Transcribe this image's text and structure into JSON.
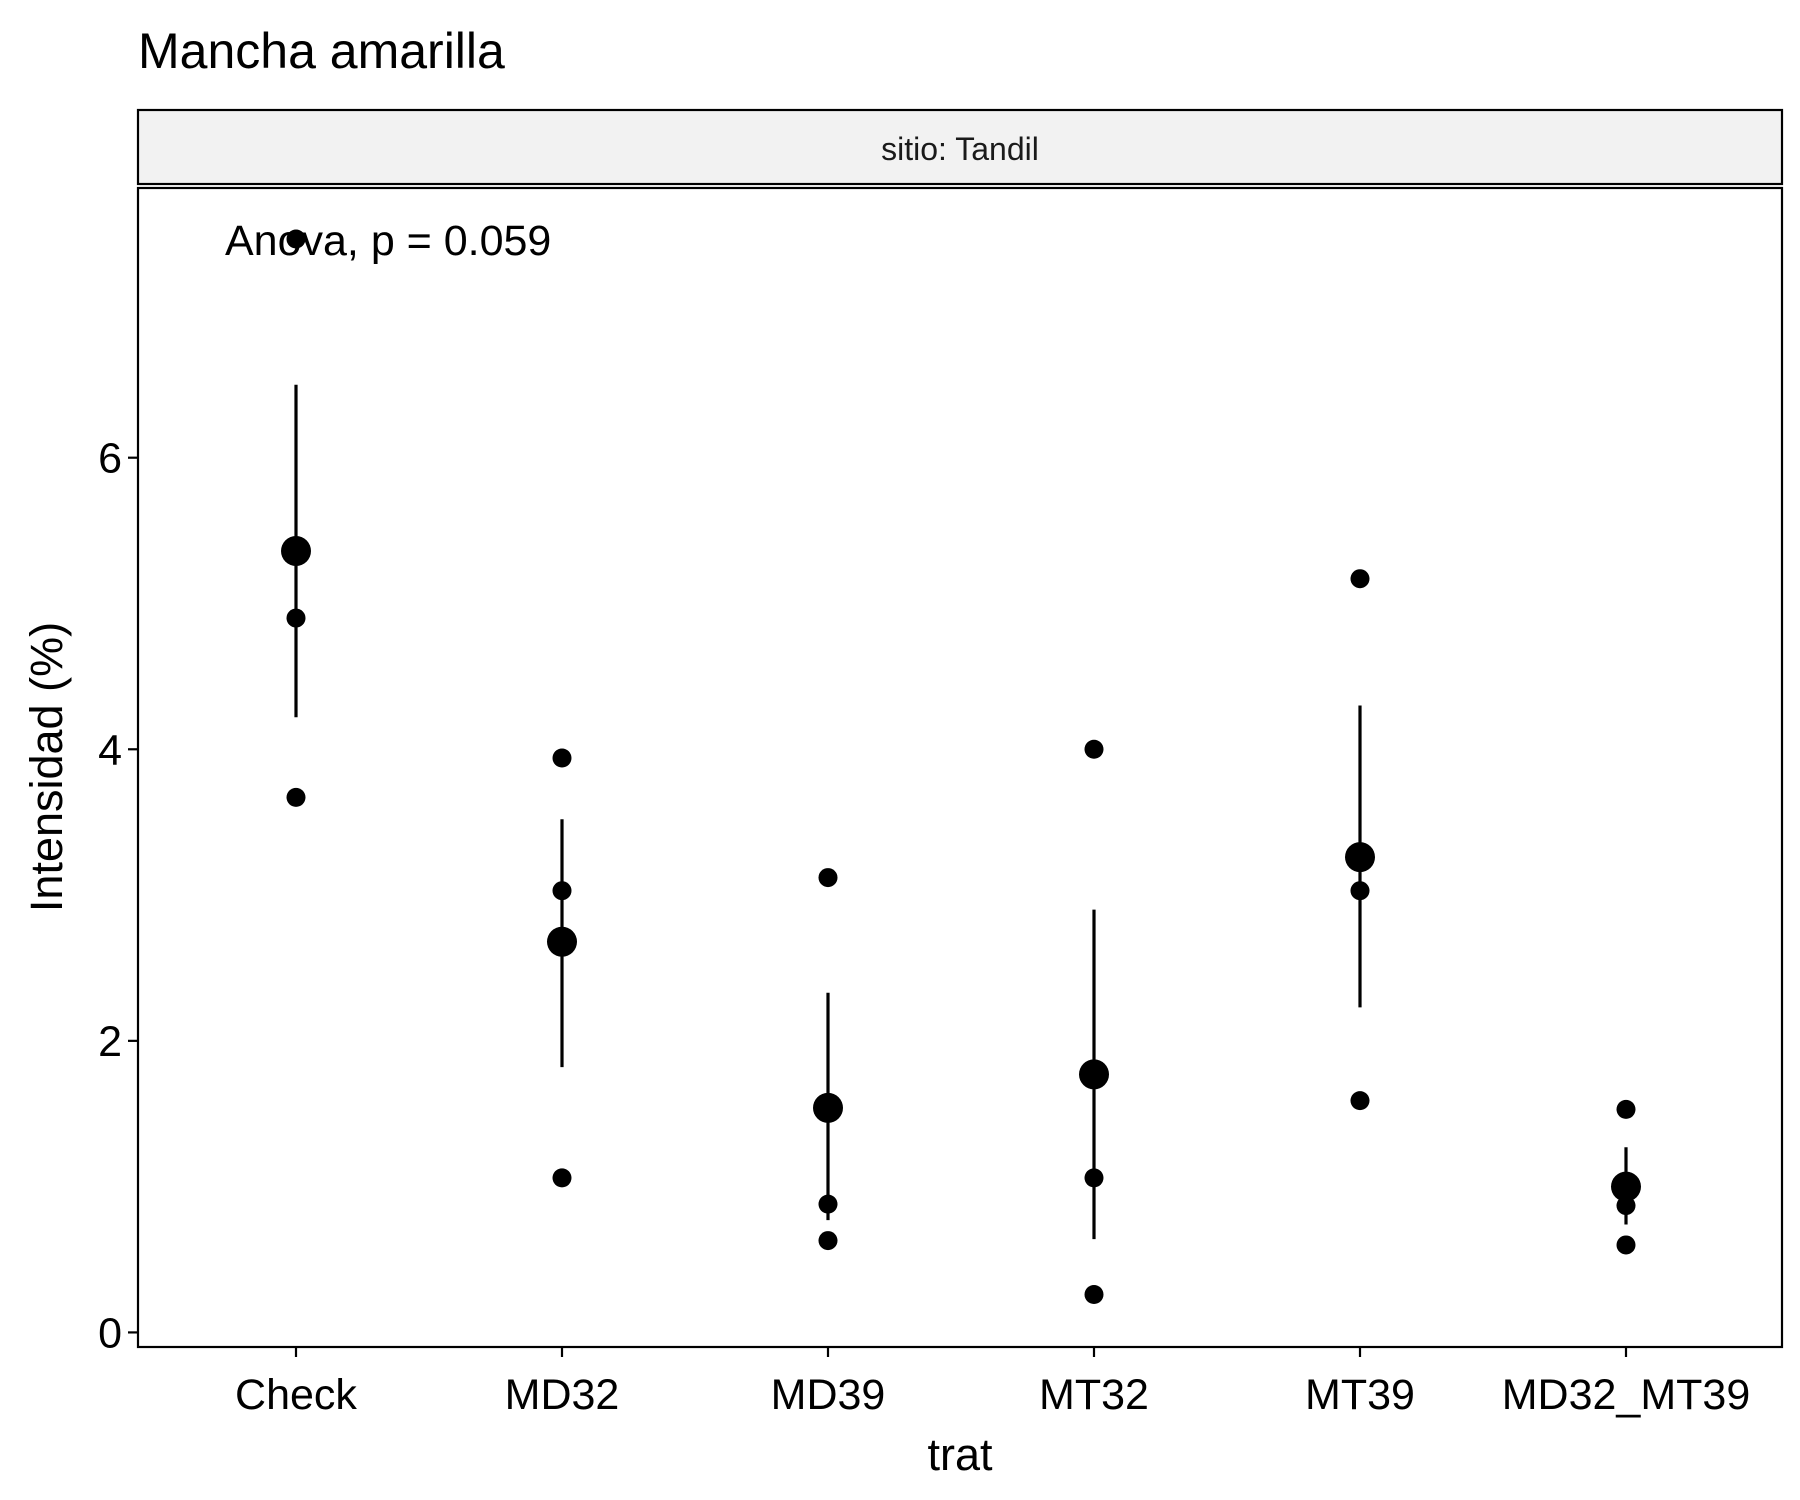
{
  "chart_data": {
    "type": "scatter",
    "title": "Mancha amarilla",
    "facet_label": "sitio: Tandil",
    "xlabel": "trat",
    "ylabel": "Intensidad (%)",
    "annotation": "Anova, p = 0.059",
    "categories": [
      "Check",
      "MD32",
      "MD39",
      "MT32",
      "MT39",
      "MD32_MT39"
    ],
    "yticks": [
      0,
      2,
      4,
      6
    ],
    "ylim": [
      -0.1,
      7.85
    ],
    "grid": false,
    "points": [
      {
        "category": "Check",
        "values": [
          7.5,
          4.9,
          3.67
        ]
      },
      {
        "category": "MD32",
        "values": [
          3.94,
          3.03,
          1.06
        ]
      },
      {
        "category": "MD39",
        "values": [
          3.12,
          0.88,
          0.63
        ]
      },
      {
        "category": "MT32",
        "values": [
          4.0,
          1.06,
          0.26
        ]
      },
      {
        "category": "MT39",
        "values": [
          5.17,
          3.03,
          1.59
        ]
      },
      {
        "category": "MD32_MT39",
        "values": [
          1.53,
          0.87,
          0.6
        ]
      }
    ],
    "summary": [
      {
        "category": "Check",
        "mean": 5.36,
        "lower": 4.22,
        "upper": 6.5
      },
      {
        "category": "MD32",
        "mean": 2.68,
        "lower": 1.82,
        "upper": 3.52
      },
      {
        "category": "MD39",
        "mean": 1.54,
        "lower": 0.77,
        "upper": 2.33
      },
      {
        "category": "MT32",
        "mean": 1.77,
        "lower": 0.64,
        "upper": 2.9
      },
      {
        "category": "MT39",
        "mean": 3.26,
        "lower": 2.23,
        "upper": 4.3
      },
      {
        "category": "MD32_MT39",
        "mean": 1.0,
        "lower": 0.74,
        "upper": 1.27
      }
    ]
  }
}
